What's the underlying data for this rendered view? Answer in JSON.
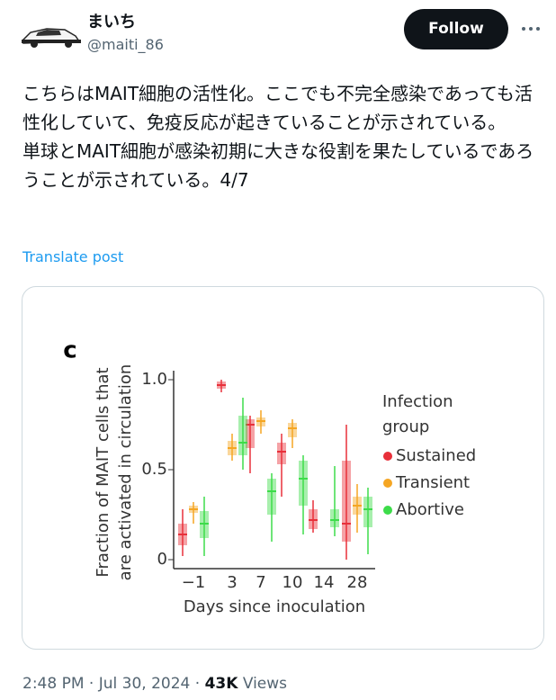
{
  "tweet": {
    "name": "まいち",
    "handle": "@maiti_86",
    "follow": "Follow",
    "paragraphs": [
      "こちらはMAIT細胞の活性化。ここでも不完全感染であっても活性化していて、免疫反応が起きていることが示されている。",
      "単球とMAIT細胞が感染初期に大きな役割を果たしているであろうことが示されている。4/7"
    ],
    "translate": "Translate post",
    "time": "2:48 PM",
    "separator": "·",
    "date": "Jul 30, 2024",
    "views": "43K",
    "views_label": "Views"
  },
  "chart_data": {
    "type": "box",
    "title": "c",
    "y_label": [
      "Fraction of MAIT cells that",
      "are activated in circulation"
    ],
    "x_label": "Days since inoculation",
    "legend_title": [
      "Infection",
      "group"
    ],
    "categories": [
      "−1",
      "3",
      "7",
      "10",
      "14",
      "28"
    ],
    "ylim": [
      0,
      1
    ],
    "yticks": [
      0,
      0.5,
      {
        "value": 1,
        "label": "1.0"
      }
    ],
    "series": [
      {
        "name": "Sustained",
        "color": "#e8303a",
        "values": [
          [
            0.02,
            0.08,
            0.14,
            0.2,
            0.28
          ],
          [
            0.93,
            0.95,
            0.97,
            0.99,
            1.0
          ],
          [
            0.48,
            0.62,
            0.75,
            0.78,
            0.8
          ],
          [
            0.35,
            0.53,
            0.6,
            0.65,
            0.7
          ],
          [
            0.15,
            0.17,
            0.22,
            0.28,
            0.33
          ],
          [
            0.0,
            0.1,
            0.2,
            0.55,
            0.75
          ]
        ]
      },
      {
        "name": "Transient",
        "color": "#f5a623",
        "values": [
          [
            0.2,
            0.26,
            0.28,
            0.3,
            0.32
          ],
          [
            0.55,
            0.58,
            0.62,
            0.66,
            0.7
          ],
          [
            0.7,
            0.74,
            0.77,
            0.79,
            0.83
          ],
          [
            0.62,
            0.68,
            0.73,
            0.76,
            0.78
          ],
          null,
          [
            0.15,
            0.25,
            0.3,
            0.35,
            0.42
          ]
        ]
      },
      {
        "name": "Abortive",
        "color": "#3ddc4a",
        "values": [
          [
            0.02,
            0.12,
            0.2,
            0.27,
            0.35
          ],
          [
            0.5,
            0.58,
            0.65,
            0.8,
            0.9
          ],
          [
            0.1,
            0.25,
            0.38,
            0.45,
            0.48
          ],
          [
            0.14,
            0.3,
            0.45,
            0.55,
            0.58
          ],
          [
            0.13,
            0.18,
            0.22,
            0.28,
            0.52
          ],
          [
            0.03,
            0.18,
            0.28,
            0.35,
            0.4
          ]
        ]
      }
    ]
  }
}
